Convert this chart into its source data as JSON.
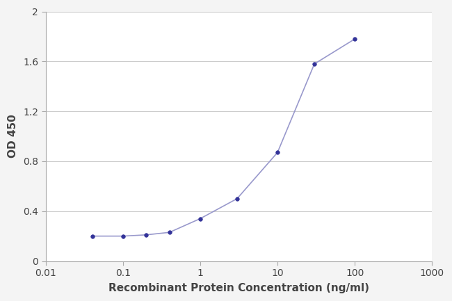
{
  "x": [
    0.04,
    0.1,
    0.2,
    0.4,
    1.0,
    3.0,
    10.0,
    30.0,
    100.0
  ],
  "y": [
    0.2,
    0.2,
    0.21,
    0.23,
    0.34,
    0.5,
    0.87,
    1.58,
    1.78
  ],
  "xlim": [
    0.01,
    1000
  ],
  "ylim": [
    0,
    2.0
  ],
  "yticks": [
    0,
    0.4,
    0.8,
    1.2,
    1.6,
    2.0
  ],
  "ytick_labels": [
    "0",
    "0.4",
    "0.8",
    "1.2",
    "1.6",
    "2"
  ],
  "xticks": [
    0.01,
    0.1,
    1,
    10,
    100,
    1000
  ],
  "xtick_labels": [
    "0.01",
    "0.1",
    "1",
    "10",
    "100",
    "1000"
  ],
  "xlabel": "Recombinant Protein Concentration (ng/ml)",
  "ylabel": "OD 450",
  "line_color": "#9999cc",
  "marker_color": "#333399",
  "bg_color": "#f4f4f4",
  "plot_bg_color": "#ffffff",
  "grid_color": "#cccccc",
  "marker_size": 4,
  "line_width": 1.2,
  "font_color": "#444444",
  "xlabel_fontsize": 11,
  "ylabel_fontsize": 11,
  "tick_fontsize": 10
}
